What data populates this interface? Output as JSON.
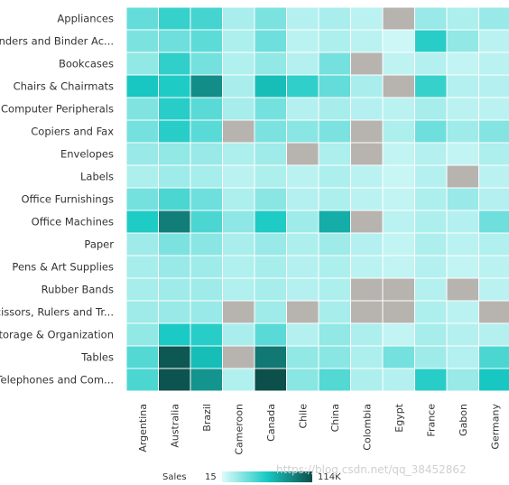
{
  "chart_data": {
    "type": "heatmap",
    "rows": [
      "Appliances",
      "Binders and Binder Ac...",
      "Bookcases",
      "Chairs & Chairmats",
      "Computer Peripherals",
      "Copiers and Fax",
      "Envelopes",
      "Labels",
      "Office Furnishings",
      "Office Machines",
      "Paper",
      "Pens & Art Supplies",
      "Rubber Bands",
      "Scissors, Rulers and Tr...",
      "Storage & Organization",
      "Tables",
      "Telephones and Com..."
    ],
    "columns": [
      "Argentina",
      "Australia",
      "Brazil",
      "Cameroon",
      "Canada",
      "Chile",
      "China",
      "Colombia",
      "Egypt",
      "France",
      "Gabon",
      "Germany"
    ],
    "values": [
      [
        35000,
        48000,
        44000,
        15000,
        28000,
        12000,
        15000,
        10000,
        null,
        20000,
        14000,
        20000
      ],
      [
        28000,
        32000,
        37000,
        14000,
        32000,
        10000,
        14000,
        10000,
        5000,
        52000,
        22000,
        10000
      ],
      [
        22000,
        50000,
        30000,
        13000,
        22000,
        12000,
        30000,
        null,
        9000,
        12000,
        8000,
        10000
      ],
      [
        58000,
        55000,
        85000,
        15000,
        62000,
        50000,
        35000,
        15000,
        null,
        48000,
        12000,
        12000
      ],
      [
        27000,
        52000,
        38000,
        16000,
        30000,
        12000,
        16000,
        12000,
        10000,
        16000,
        10000,
        10000
      ],
      [
        30000,
        52000,
        38000,
        null,
        28000,
        24000,
        28000,
        null,
        14000,
        32000,
        18000,
        26000
      ],
      [
        20000,
        22000,
        20000,
        14000,
        18000,
        null,
        14000,
        null,
        8000,
        12000,
        8000,
        14000
      ],
      [
        14000,
        18000,
        16000,
        10000,
        14000,
        10000,
        14000,
        10000,
        6000,
        12000,
        null,
        10000
      ],
      [
        30000,
        42000,
        32000,
        14000,
        24000,
        12000,
        14000,
        10000,
        8000,
        14000,
        20000,
        12000
      ],
      [
        55000,
        92000,
        42000,
        23000,
        55000,
        18000,
        70000,
        null,
        10000,
        14000,
        12000,
        32000
      ],
      [
        18000,
        28000,
        24000,
        15000,
        20000,
        14000,
        18000,
        12000,
        8000,
        14000,
        10000,
        13000
      ],
      [
        16000,
        20000,
        18000,
        13000,
        16000,
        12000,
        14000,
        10000,
        8000,
        12000,
        8000,
        10000
      ],
      [
        16000,
        18000,
        18000,
        13000,
        16000,
        12000,
        14000,
        null,
        null,
        12000,
        null,
        10000
      ],
      [
        18000,
        20000,
        20000,
        null,
        18000,
        null,
        16000,
        null,
        null,
        14000,
        10000,
        null
      ],
      [
        22000,
        56000,
        52000,
        15000,
        38000,
        12000,
        22000,
        14000,
        8000,
        16000,
        12000,
        12000
      ],
      [
        40000,
        110000,
        62000,
        null,
        95000,
        22000,
        24000,
        14000,
        30000,
        18000,
        12000,
        42000
      ],
      [
        42000,
        112000,
        82000,
        13000,
        114000,
        24000,
        40000,
        14000,
        12000,
        52000,
        20000,
        58000
      ]
    ],
    "missing_color": "#b7b4b0",
    "color_min": "#ddfbfb",
    "color_mid": "#18c9c3",
    "color_max": "#0d4f4b",
    "legend": {
      "title": "Sales",
      "min_label": "15",
      "max_label": "114K",
      "min": 15,
      "max": 114000
    }
  },
  "watermark": "https://blog.csdn.net/qq_38452862"
}
